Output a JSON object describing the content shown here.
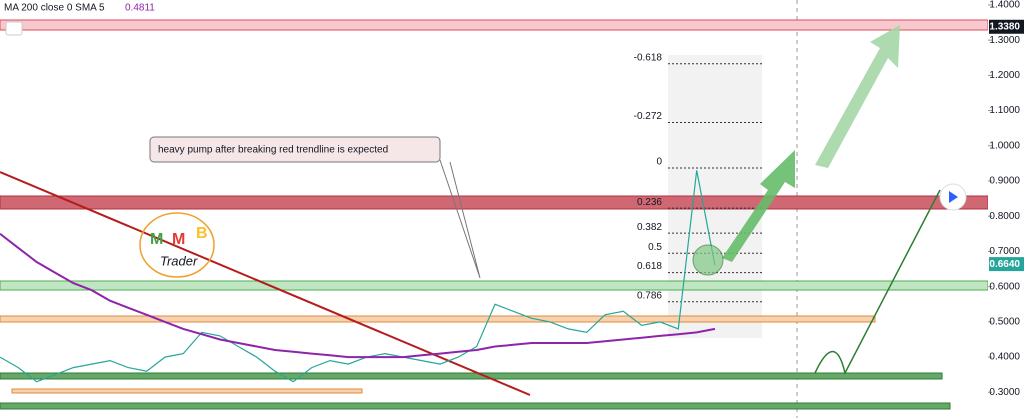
{
  "chart_data": {
    "type": "line",
    "legend_title": "MA 200 close 0 SMA 5",
    "annotation": "heavy pump after breaking red trendline is expected",
    "logo": {
      "letters": [
        "M",
        "M",
        "B"
      ],
      "text": "Trader"
    },
    "ylim": [
      0.227,
      1.414
    ],
    "yticks": [
      {
        "value": 0.3,
        "label": "0.3000"
      },
      {
        "value": 0.4,
        "label": "0.4000"
      },
      {
        "value": 0.5,
        "label": "0.5000"
      },
      {
        "value": 0.6,
        "label": "0.6000"
      },
      {
        "value": 0.7,
        "label": "0.7000"
      },
      {
        "value": 0.8,
        "label": "0.8000"
      },
      {
        "value": 0.9,
        "label": "0.9000"
      },
      {
        "value": 1.0,
        "label": "1.0000"
      },
      {
        "value": 1.1,
        "label": "1.1000"
      },
      {
        "value": 1.2,
        "label": "1.2000"
      },
      {
        "value": 1.3,
        "label": "1.3000"
      },
      {
        "value": 1.4,
        "label": "1.4000"
      }
    ],
    "price_labels": [
      {
        "value": 1.338,
        "label": "1.3380",
        "color": "#131722"
      },
      {
        "value": 0.664,
        "label": "0.6640",
        "color": "#26a69a"
      }
    ],
    "fib": {
      "ratios": [
        -0.618,
        -0.272,
        0,
        0.236,
        0.382,
        0.5,
        0.618,
        0.786
      ],
      "prices": [
        1.233,
        1.066,
        0.937,
        0.823,
        0.752,
        0.695,
        0.64,
        0.557
      ]
    },
    "categories": [
      null,
      null,
      null,
      null,
      null,
      null,
      null,
      null,
      null,
      null,
      null,
      null,
      null,
      null,
      null,
      null,
      null,
      null,
      null,
      null,
      null,
      null,
      null,
      null,
      null,
      null,
      null,
      null,
      null,
      null,
      null,
      null,
      null,
      null,
      null,
      null,
      null,
      null,
      null,
      null
    ],
    "series": [
      {
        "color": "#26a69a",
        "values": [
          0.4,
          0.37,
          0.33,
          0.35,
          0.37,
          0.38,
          0.39,
          0.37,
          0.36,
          0.4,
          0.41,
          0.47,
          0.46,
          0.43,
          0.4,
          0.36,
          0.33,
          0.37,
          0.39,
          0.38,
          0.4,
          0.41,
          0.4,
          0.39,
          0.38,
          0.4,
          0.43,
          0.55,
          0.53,
          0.51,
          0.5,
          0.48,
          0.47,
          0.52,
          0.53,
          0.49,
          0.5,
          0.48,
          0.93,
          0.66
        ]
      },
      {
        "name": "MA 200 close 0 SMA 5",
        "last_value": 0.4811,
        "color": "#8e24aa",
        "values": [
          0.75,
          0.71,
          0.67,
          0.64,
          0.61,
          0.59,
          0.56,
          0.54,
          0.52,
          0.5,
          0.48,
          0.465,
          0.45,
          0.44,
          0.43,
          0.42,
          0.415,
          0.41,
          0.405,
          0.4,
          0.4,
          0.4,
          0.4,
          0.405,
          0.41,
          0.415,
          0.42,
          0.43,
          0.435,
          0.44,
          0.44,
          0.44,
          0.44,
          0.445,
          0.45,
          0.455,
          0.46,
          0.465,
          0.47,
          0.48
        ]
      }
    ]
  }
}
